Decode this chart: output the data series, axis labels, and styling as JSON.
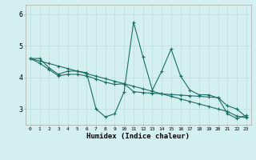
{
  "xlabel": "Humidex (Indice chaleur)",
  "bg_color": "#d4efef",
  "grid_color": "#c0e0e0",
  "line_color": "#1a6e62",
  "x_values": [
    0,
    1,
    2,
    3,
    4,
    5,
    6,
    7,
    8,
    9,
    10,
    11,
    12,
    13,
    14,
    15,
    16,
    17,
    18,
    19,
    20,
    21,
    22,
    23
  ],
  "series1": [
    4.6,
    4.6,
    4.3,
    4.1,
    4.2,
    4.2,
    4.15,
    3.0,
    2.75,
    2.85,
    3.55,
    5.75,
    4.65,
    3.6,
    4.2,
    4.9,
    4.05,
    3.6,
    3.45,
    3.45,
    3.35,
    2.85,
    2.7,
    2.8
  ],
  "series2": [
    4.6,
    4.45,
    4.25,
    4.05,
    4.1,
    4.1,
    4.05,
    3.95,
    3.85,
    3.78,
    3.8,
    3.55,
    3.52,
    3.5,
    3.48,
    3.46,
    3.44,
    3.42,
    3.4,
    3.38,
    3.36,
    3.1,
    3.0,
    2.75
  ],
  "series3": [
    4.6,
    4.52,
    4.44,
    4.36,
    4.28,
    4.2,
    4.12,
    4.04,
    3.96,
    3.88,
    3.8,
    3.72,
    3.64,
    3.56,
    3.48,
    3.4,
    3.32,
    3.24,
    3.16,
    3.08,
    3.0,
    2.92,
    2.78,
    2.72
  ],
  "ylim": [
    2.5,
    6.3
  ],
  "yticks": [
    3,
    4,
    5,
    6
  ],
  "xticks": [
    0,
    1,
    2,
    3,
    4,
    5,
    6,
    7,
    8,
    9,
    10,
    11,
    12,
    13,
    14,
    15,
    16,
    17,
    18,
    19,
    20,
    21,
    22,
    23
  ],
  "marker": "+",
  "markersize": 3,
  "linewidth": 0.8
}
